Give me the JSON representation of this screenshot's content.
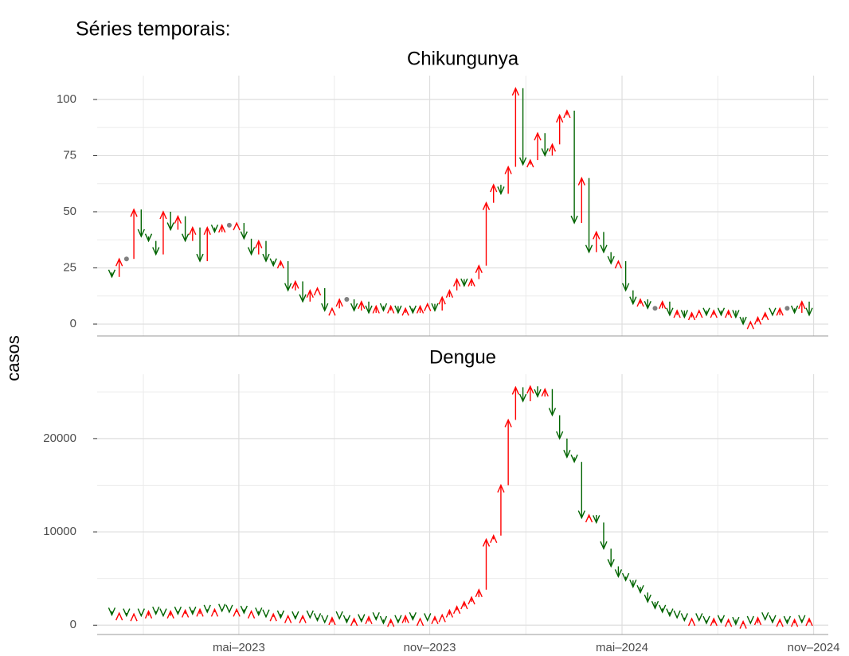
{
  "header": {
    "title": "Séries temporais:",
    "y_label": "casos"
  },
  "chart_data": [
    {
      "type": "arrow",
      "title": "Chikungunya",
      "up_color": "#ff0000",
      "down_color": "#006400",
      "equal_color": "#808080",
      "grid": true,
      "x": [
        0,
        1,
        2,
        3,
        4,
        5,
        6,
        7,
        8,
        9,
        10,
        11,
        12,
        13,
        14,
        15,
        16,
        17,
        18,
        19,
        20,
        21,
        22,
        23,
        24,
        25,
        26,
        27,
        28,
        29,
        30,
        31,
        32,
        33,
        34,
        35,
        36,
        37,
        38,
        39,
        40,
        41,
        42,
        43,
        44,
        45,
        46,
        47,
        48,
        49,
        50,
        51,
        52,
        53,
        54,
        55,
        56,
        57,
        58,
        59,
        60,
        61,
        62,
        63,
        64,
        65,
        66,
        67,
        68,
        69,
        70,
        71,
        72,
        73,
        74,
        75,
        76,
        77,
        78,
        79,
        80,
        81,
        82,
        83,
        84,
        85,
        86,
        87,
        88,
        89,
        90,
        91,
        92,
        93,
        94,
        95,
        96
      ],
      "values": [
        23,
        21,
        29,
        29,
        51,
        39,
        37,
        31,
        50,
        42,
        48,
        37,
        43,
        28,
        43,
        41,
        44,
        44,
        45,
        38,
        31,
        37,
        28,
        26,
        28,
        15,
        19,
        10,
        15,
        16,
        6,
        7,
        11,
        11,
        6,
        10,
        5,
        8,
        6,
        8,
        5,
        7,
        5,
        8,
        9,
        6,
        12,
        15,
        20,
        17,
        20,
        26,
        54,
        62,
        58,
        70,
        105,
        71,
        73,
        85,
        75,
        80,
        93,
        95,
        45,
        65,
        32,
        41,
        32,
        27,
        28,
        15,
        9,
        11,
        7,
        7,
        10,
        4,
        6,
        3,
        5,
        6,
        4,
        6,
        4,
        6,
        3,
        0,
        1,
        3,
        5,
        4,
        7,
        7,
        5,
        10,
        4
      ],
      "xlim": [
        -1,
        98.6
      ],
      "xticks": [
        18.3,
        44.3,
        70.5,
        96.6
      ],
      "ylim": [
        -5.3,
        110.6
      ],
      "yticks": [
        0,
        25,
        50,
        75,
        100
      ]
    },
    {
      "type": "arrow",
      "title": "Dengue",
      "up_color": "#ff0000",
      "down_color": "#006400",
      "equal_color": "#808080",
      "grid": true,
      "x": [
        0,
        1,
        2,
        3,
        4,
        5,
        6,
        7,
        8,
        9,
        10,
        11,
        12,
        13,
        14,
        15,
        16,
        17,
        18,
        19,
        20,
        21,
        22,
        23,
        24,
        25,
        26,
        27,
        28,
        29,
        30,
        31,
        32,
        33,
        34,
        35,
        36,
        37,
        38,
        39,
        40,
        41,
        42,
        43,
        44,
        45,
        46,
        47,
        48,
        49,
        50,
        51,
        52,
        53,
        54,
        55,
        56,
        57,
        58,
        59,
        60,
        61,
        62,
        63,
        64,
        65,
        66,
        67,
        68,
        69,
        70,
        71,
        72,
        73,
        74,
        75,
        76,
        77,
        78,
        79,
        80,
        81,
        82,
        83,
        84,
        85,
        86,
        87,
        88,
        89,
        90,
        91,
        92,
        93,
        94,
        95,
        96
      ],
      "values": [
        1500,
        1100,
        1300,
        1000,
        1200,
        1000,
        1500,
        1200,
        1000,
        1500,
        1200,
        1600,
        1200,
        1700,
        1400,
        1700,
        1500,
        1400,
        1700,
        1300,
        1500,
        1100,
        900,
        1200,
        800,
        1000,
        700,
        1000,
        800,
        500,
        300,
        800,
        700,
        300,
        700,
        400,
        900,
        600,
        200,
        600,
        300,
        1000,
        600,
        700,
        500,
        900,
        1100,
        1600,
        2000,
        2500,
        3000,
        3800,
        9200,
        9600,
        15000,
        22000,
        25500,
        24000,
        25600,
        24500,
        25300,
        22500,
        20000,
        18000,
        17500,
        11500,
        11800,
        11000,
        8200,
        6300,
        5200,
        4800,
        4100,
        3500,
        2500,
        1800,
        1400,
        1000,
        800,
        500,
        700,
        500,
        200,
        700,
        300,
        600,
        100,
        400,
        200,
        800,
        600,
        300,
        600,
        200,
        600,
        300,
        700
      ],
      "xlim": [
        -1,
        98.6
      ],
      "xticks": [
        {
          "value": 18.3,
          "label": "mai–2023"
        },
        {
          "value": 44.3,
          "label": "nov–2023"
        },
        {
          "value": 70.5,
          "label": "mai–2024"
        },
        {
          "value": 96.6,
          "label": "nov–2024"
        }
      ],
      "ylim": [
        -1000,
        26900
      ],
      "yticks": [
        0,
        10000,
        20000
      ]
    }
  ]
}
